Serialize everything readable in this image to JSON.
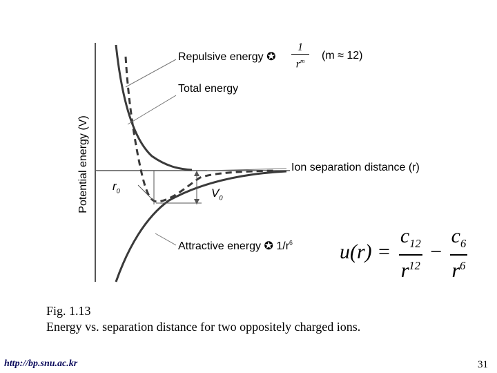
{
  "labels": {
    "repulsive": "Repulsive energy ✪",
    "repulsive_num": "1",
    "repulsive_den": "r",
    "repulsive_exp": "m",
    "repulsive_cond": "(m ≈ 12)",
    "total": "Total energy",
    "yaxis": "Potential energy (V)",
    "xaxis": "Ion separation distance (r)",
    "r0": "r",
    "r0_sub": "0",
    "v0": "V",
    "v0_sub": "0",
    "attractive": "Attractive energy ✪ 1/r",
    "attractive_exp": "6"
  },
  "equation": {
    "lhs": "u(r) =",
    "c12": "c",
    "c12_sub": "12",
    "r12": "r",
    "r12_sup": "12",
    "minus": "−",
    "c6": "c",
    "c6_sub": "6",
    "r6": "r",
    "r6_sup": "6"
  },
  "caption": {
    "line1": "Fig. 1.13",
    "line2": "Energy vs. separation distance for two oppositely charged ions."
  },
  "footer": {
    "url": "http://bp.snu.ac.kr",
    "page": "31"
  },
  "colors": {
    "curve": "#3a3a3a",
    "axis": "#555555",
    "leader": "#777777"
  }
}
